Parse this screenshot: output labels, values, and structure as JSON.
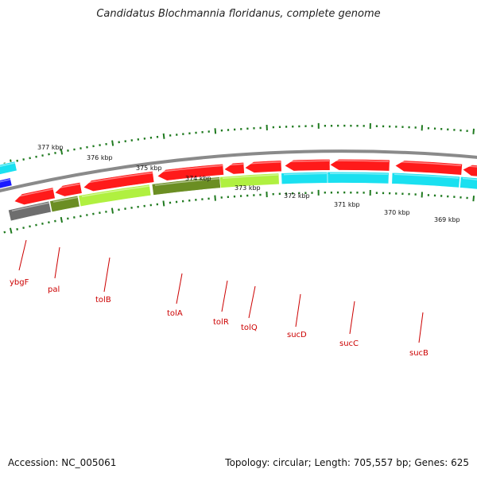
{
  "title": "Candidatus Blochmannia floridanus, complete genome",
  "footer": {
    "accession": "Accession: NC_005061",
    "summary": "Topology: circular; Length: 705,557 bp; Genes: 625"
  },
  "colors": {
    "backbone": "#8a8a8a",
    "tick_major": "#1f7a1f",
    "tick_minor": "#1f7a1f",
    "label": "#cc0000",
    "gene_red": "#ff1a1a",
    "gene_cyan": "#1ae0f0",
    "gene_olive": "#6b8e23",
    "gene_lime": "#b0f040",
    "gene_gray": "#6e6e6e",
    "gene_blue": "#1a1aff"
  },
  "scale_labels": [
    "377 kbp",
    "376 kbp",
    "375 kbp",
    "374 kbp",
    "373 kbp",
    "372 kbp",
    "371 kbp",
    "370 kbp",
    "369 kbp"
  ],
  "gene_labels": [
    "ybgF",
    "pal",
    "tolB",
    "tolA",
    "tolR",
    "tolQ",
    "sucD",
    "sucC",
    "sucB"
  ]
}
